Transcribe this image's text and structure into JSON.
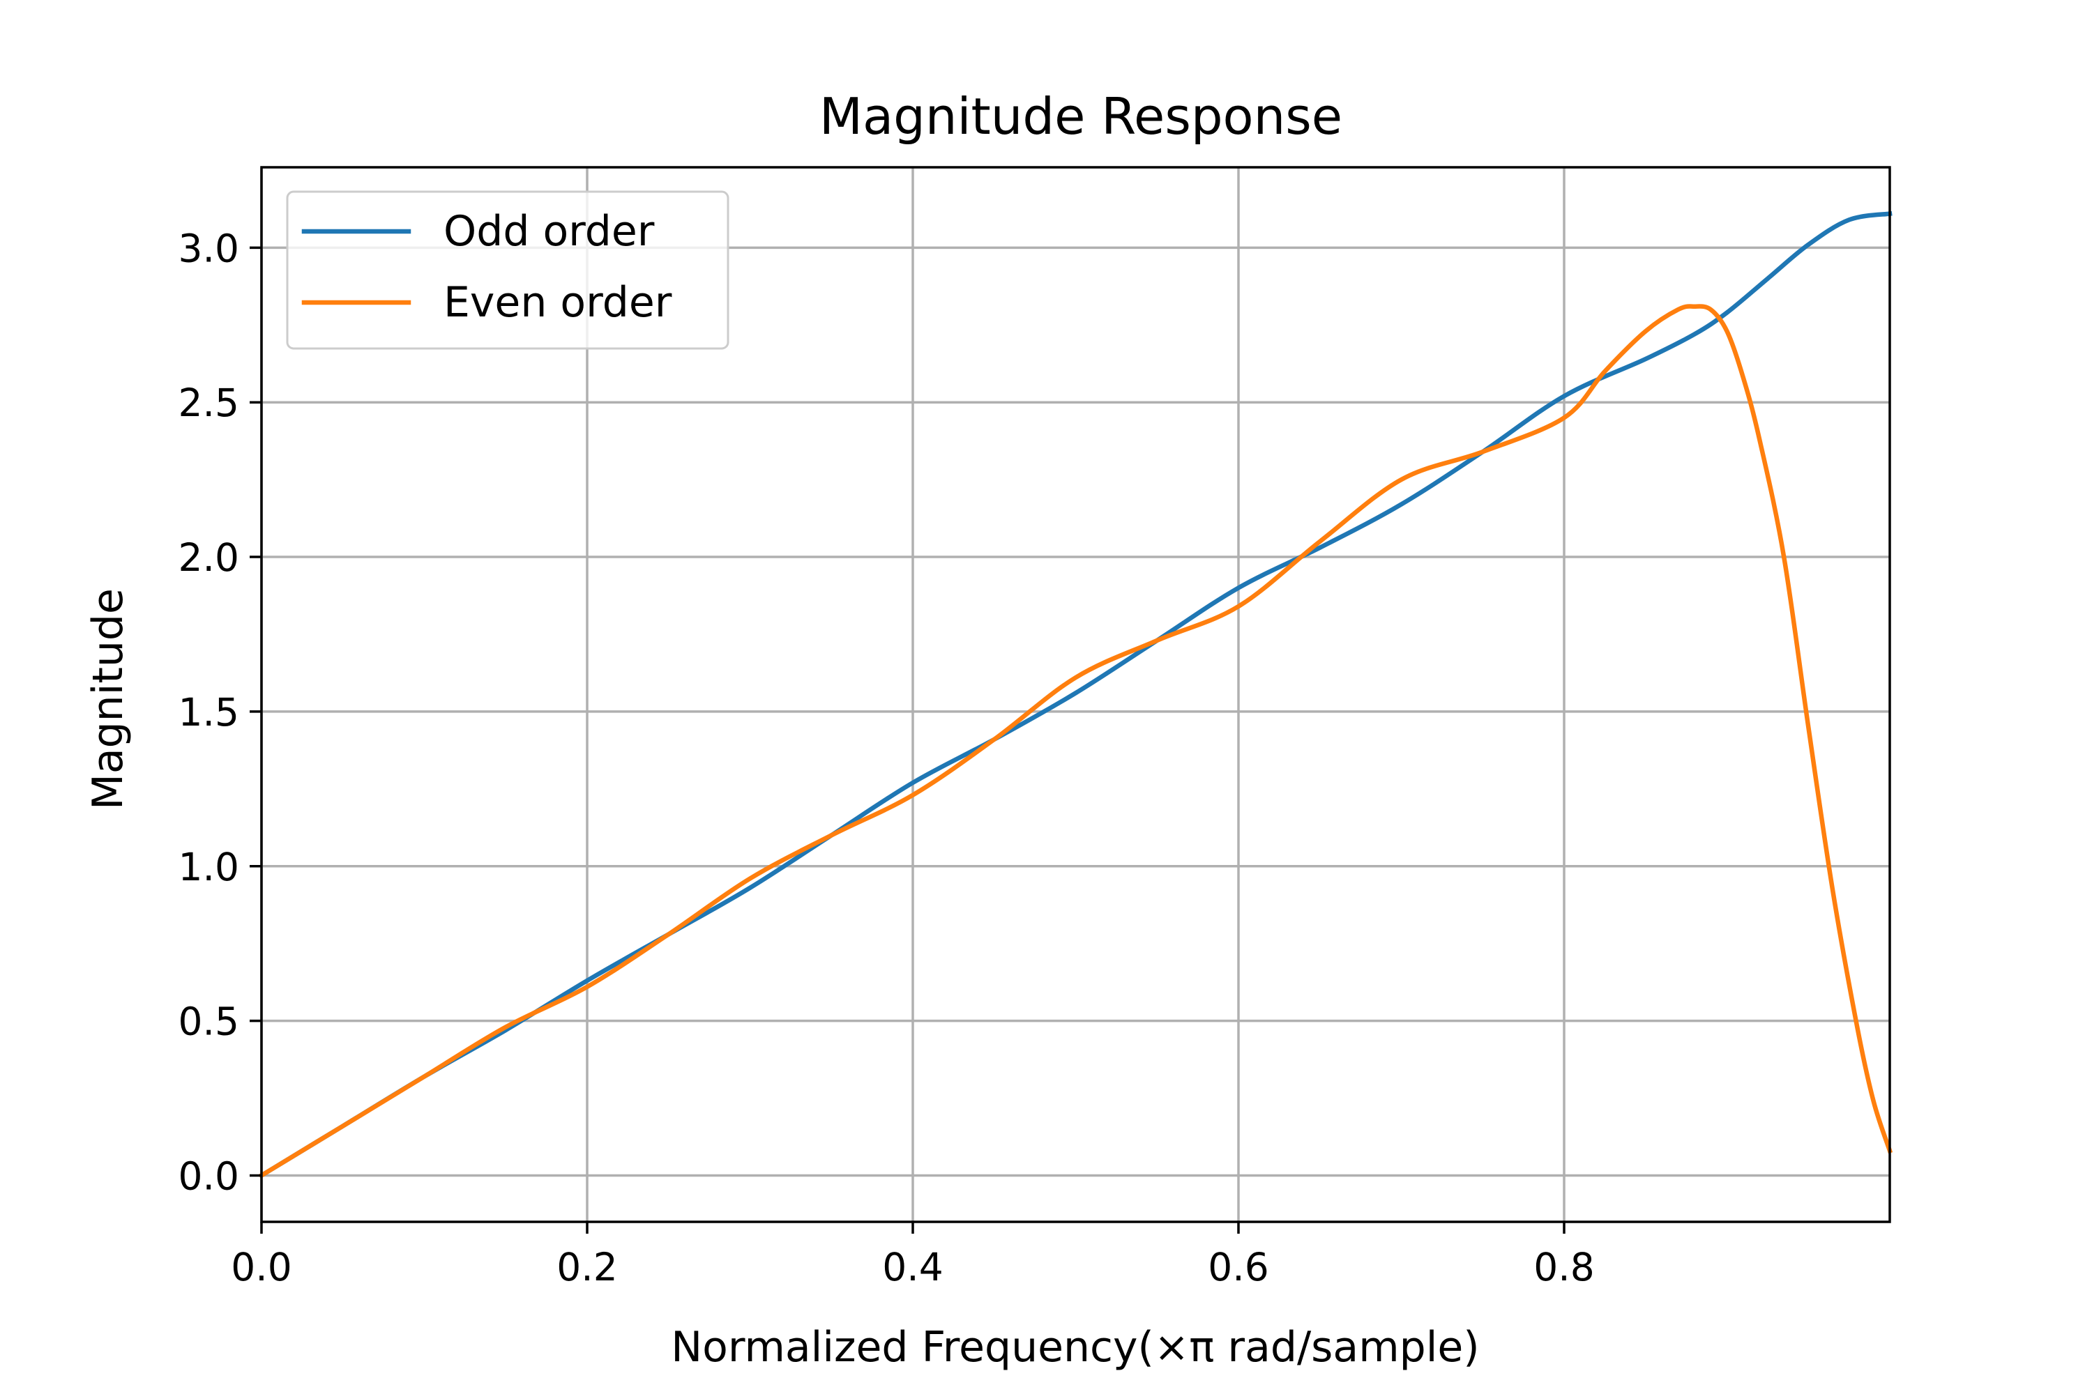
{
  "chart_data": {
    "type": "line",
    "title": "Magnitude Response",
    "xlabel": "Normalized Frequency(×π rad/sample)",
    "ylabel": "Magnitude",
    "xlim": [
      0.0,
      1.0
    ],
    "ylim": [
      -0.15,
      3.26
    ],
    "xticks": [
      0.0,
      0.2,
      0.4,
      0.6,
      0.8
    ],
    "xtick_labels": [
      "0.0",
      "0.2",
      "0.4",
      "0.6",
      "0.8"
    ],
    "yticks": [
      0.0,
      0.5,
      1.0,
      1.5,
      2.0,
      2.5,
      3.0
    ],
    "ytick_labels": [
      "0.0",
      "0.5",
      "1.0",
      "1.5",
      "2.0",
      "2.5",
      "3.0"
    ],
    "grid": true,
    "legend_position": "top-left",
    "series": [
      {
        "name": "Odd order",
        "color": "#1f77b4",
        "x": [
          0.0,
          0.05,
          0.1,
          0.15,
          0.2,
          0.25,
          0.3,
          0.35,
          0.4,
          0.45,
          0.5,
          0.55,
          0.6,
          0.65,
          0.7,
          0.75,
          0.8,
          0.85,
          0.88,
          0.9,
          0.925,
          0.95,
          0.975,
          1.0
        ],
        "y": [
          0.0,
          0.16,
          0.32,
          0.47,
          0.63,
          0.78,
          0.93,
          1.1,
          1.27,
          1.41,
          1.56,
          1.73,
          1.9,
          2.03,
          2.17,
          2.34,
          2.52,
          2.64,
          2.72,
          2.79,
          2.9,
          3.01,
          3.09,
          3.11
        ]
      },
      {
        "name": "Even order",
        "color": "#ff7f0e",
        "x": [
          0.0,
          0.05,
          0.1,
          0.15,
          0.2,
          0.25,
          0.3,
          0.35,
          0.4,
          0.45,
          0.5,
          0.55,
          0.6,
          0.65,
          0.7,
          0.75,
          0.8,
          0.825,
          0.85,
          0.87,
          0.88,
          0.89,
          0.9,
          0.91,
          0.92,
          0.935,
          0.95,
          0.965,
          0.98,
          0.99,
          1.0
        ],
        "y": [
          0.0,
          0.16,
          0.32,
          0.48,
          0.61,
          0.78,
          0.96,
          1.1,
          1.23,
          1.41,
          1.61,
          1.73,
          1.84,
          2.05,
          2.25,
          2.34,
          2.45,
          2.6,
          2.73,
          2.8,
          2.81,
          2.8,
          2.73,
          2.58,
          2.38,
          2.0,
          1.45,
          0.92,
          0.48,
          0.24,
          0.08
        ]
      }
    ]
  }
}
